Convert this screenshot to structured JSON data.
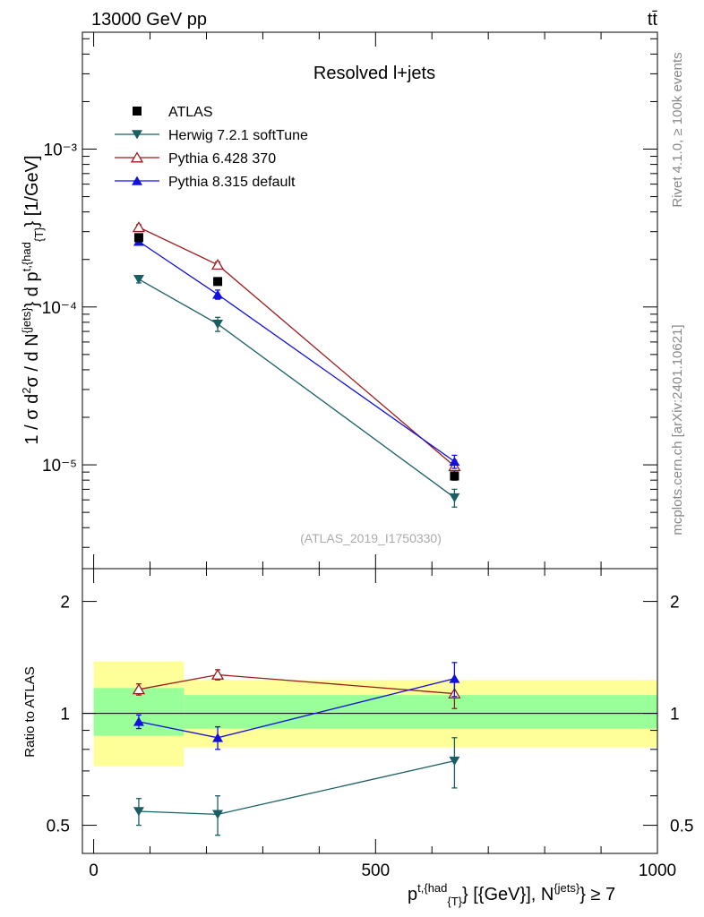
{
  "header": {
    "energy_label": "13000 GeV pp",
    "process_label": "tt̄"
  },
  "side_labels": {
    "rivet": "Rivet 4.1.0, ≥ 100k events",
    "mcplots": "mcplots.cern.ch [arXiv:2401.10621]"
  },
  "chart_data": [
    {
      "type": "line",
      "panel": "main",
      "title": "Resolved l+jets",
      "analysis_tag": "(ATLAS_2019_I1750330)",
      "yscale": "log",
      "ylabel": "1 / σ d²σ / d N^{jets} d p^{t,{had}}_{T} [1/GeV]",
      "xlabel": "p^{t,{had}}_{T} [{GeV}], N^{jets} ≥ 7",
      "xlim": [
        -20,
        1000
      ],
      "ylim": [
        2.2e-06,
        0.0055
      ],
      "x_ticks": [
        0,
        500,
        1000
      ],
      "y_tick_labels": [
        "10⁻⁵",
        "10⁻⁴",
        "10⁻³"
      ],
      "y_tick_values": [
        1e-05,
        0.0001,
        0.001
      ],
      "legend_position": "top-left",
      "series": [
        {
          "name": "ATLAS",
          "color": "#000000",
          "marker": "square",
          "x": [
            80,
            220,
            640
          ],
          "y": [
            0.000275,
            0.000145,
            8.5e-06
          ],
          "yerr_low": [
            1.5e-05,
            7e-06,
            5e-07
          ],
          "yerr_high": [
            1.5e-05,
            7e-06,
            5e-07
          ]
        },
        {
          "name": "Herwig 7.2.1 softTune",
          "color": "#1a5e64",
          "marker": "triangle-down",
          "x": [
            80,
            220,
            640
          ],
          "y": [
            0.00015,
            7.8e-05,
            6.2e-06
          ],
          "yerr_low": [
            8e-06,
            8e-06,
            8e-07
          ],
          "yerr_high": [
            8e-06,
            8e-06,
            8e-07
          ]
        },
        {
          "name": "Pythia 6.428 370",
          "color": "#9b1c1c",
          "marker": "triangle-open",
          "x": [
            80,
            220,
            640
          ],
          "y": [
            0.00032,
            0.000185,
            9.8e-06
          ],
          "yerr_low": [
            1.2e-05,
            8e-06,
            9e-07
          ],
          "yerr_high": [
            1.2e-05,
            8e-06,
            9e-07
          ]
        },
        {
          "name": "Pythia 8.315 default",
          "color": "#1010e0",
          "marker": "triangle-up",
          "x": [
            80,
            220,
            640
          ],
          "y": [
            0.00026,
            0.00012,
            1.05e-05
          ],
          "yerr_low": [
            1.2e-05,
            8e-06,
            1e-06
          ],
          "yerr_high": [
            1.2e-05,
            8e-06,
            1e-06
          ]
        }
      ]
    },
    {
      "type": "line",
      "panel": "ratio",
      "ylabel": "Ratio to ATLAS",
      "yscale": "log",
      "ylim": [
        0.42,
        2.45
      ],
      "y_ticks": [
        0.5,
        1,
        2
      ],
      "y_tick_labels": [
        "0.5",
        "1",
        "2"
      ],
      "x_ticks": [
        0,
        500,
        1000
      ],
      "x_tick_labels": [
        "0",
        "500",
        "1000"
      ],
      "bands": [
        {
          "name": "stat",
          "color": "#99ff99",
          "bins": [
            [
              0,
              160,
              0.87,
              1.17
            ],
            [
              160,
              1000,
              0.91,
              1.12
            ]
          ]
        },
        {
          "name": "total",
          "color": "#ffff99",
          "bins": [
            [
              0,
              160,
              0.72,
              1.38
            ],
            [
              160,
              1000,
              0.81,
              1.23
            ]
          ]
        }
      ],
      "series": [
        {
          "name": "Herwig 7.2.1 softTune",
          "color": "#1a5e64",
          "marker": "triangle-down",
          "x": [
            80,
            220,
            640
          ],
          "y": [
            0.545,
            0.535,
            0.745
          ],
          "yerr_low": [
            0.045,
            0.065,
            0.115
          ],
          "yerr_high": [
            0.045,
            0.065,
            0.115
          ]
        },
        {
          "name": "Pythia 6.428 370",
          "color": "#9b1c1c",
          "marker": "triangle-open",
          "x": [
            80,
            220,
            640
          ],
          "y": [
            1.16,
            1.27,
            1.13
          ],
          "yerr_low": [
            0.04,
            0.04,
            0.1
          ],
          "yerr_high": [
            0.04,
            0.04,
            0.1
          ]
        },
        {
          "name": "Pythia 8.315 default",
          "color": "#1010e0",
          "marker": "triangle-up",
          "x": [
            80,
            220,
            640
          ],
          "y": [
            0.95,
            0.86,
            1.24
          ],
          "yerr_low": [
            0.04,
            0.06,
            0.13
          ],
          "yerr_high": [
            0.04,
            0.06,
            0.13
          ]
        }
      ]
    }
  ]
}
